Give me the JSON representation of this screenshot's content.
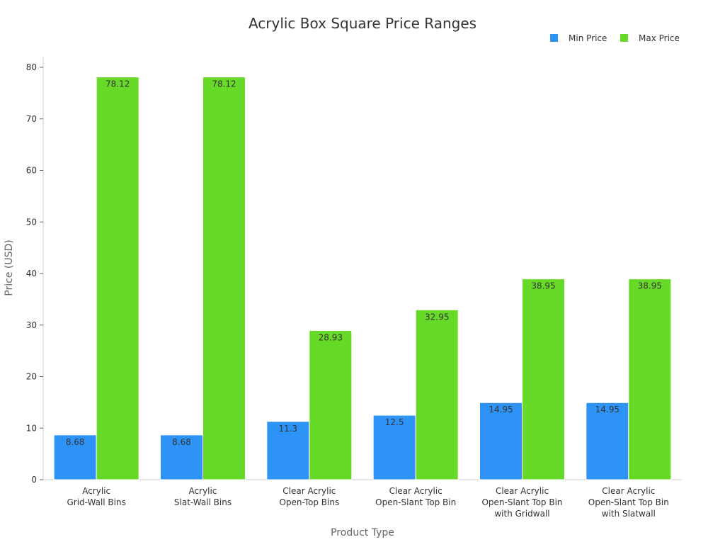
{
  "chart_data": {
    "type": "bar",
    "title": "Acrylic Box Square Price Ranges",
    "xlabel": "Product Type",
    "ylabel": "Price (USD)",
    "ylim": [
      0,
      80
    ],
    "yticks": [
      0,
      10,
      20,
      30,
      40,
      50,
      60,
      70,
      80
    ],
    "grid": false,
    "legend": "top-right",
    "categories": [
      [
        "Acrylic",
        "Grid-Wall Bins"
      ],
      [
        "Acrylic",
        "Slat-Wall Bins"
      ],
      [
        "Clear Acrylic",
        "Open-Top Bins"
      ],
      [
        "Clear Acrylic",
        "Open-Slant Top Bin"
      ],
      [
        "Clear Acrylic",
        "Open-Slant Top Bin",
        "with Gridwall"
      ],
      [
        "Clear Acrylic",
        "Open-Slant Top Bin",
        "with Slatwall"
      ]
    ],
    "series": [
      {
        "name": "Min Price",
        "color": "#2e93f6",
        "values": [
          8.68,
          8.68,
          11.3,
          12.5,
          14.95,
          14.95
        ]
      },
      {
        "name": "Max Price",
        "color": "#66da26",
        "values": [
          78.12,
          78.12,
          28.93,
          32.95,
          38.95,
          38.95
        ]
      }
    ]
  }
}
